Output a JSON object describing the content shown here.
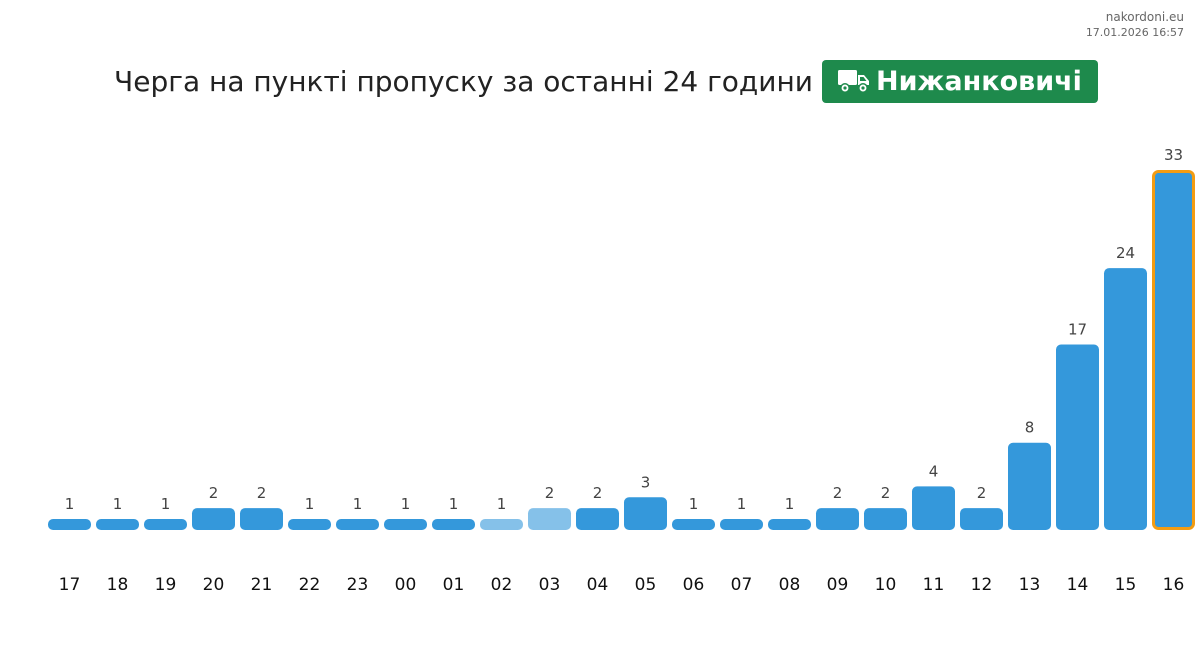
{
  "meta": {
    "site": "nakordoni.eu",
    "timestamp": "17.01.2026 16:57"
  },
  "header": {
    "title": "Черга на пункті пропуску за останні 24 години",
    "checkpoint": "Нижанковичі",
    "checkpoint_icon": "truck-icon",
    "badge_color": "#1e8a4c"
  },
  "chart_data": {
    "type": "bar",
    "title": "Черга на пункті пропуску за останні 24 години",
    "xlabel": "",
    "ylabel": "",
    "categories": [
      "17",
      "18",
      "19",
      "20",
      "21",
      "22",
      "23",
      "00",
      "01",
      "02",
      "03",
      "04",
      "05",
      "06",
      "07",
      "08",
      "09",
      "10",
      "11",
      "12",
      "13",
      "14",
      "15",
      "16"
    ],
    "values": [
      1,
      1,
      1,
      2,
      2,
      1,
      1,
      1,
      1,
      1,
      2,
      2,
      3,
      1,
      1,
      1,
      2,
      2,
      4,
      2,
      8,
      17,
      24,
      33
    ],
    "ylim": [
      0,
      33
    ],
    "grid": false,
    "legend": "none",
    "colors": {
      "bar": "#3498db",
      "bar_faded": "#85c1e9",
      "highlight_outline": "#f39c12"
    },
    "faded_categories": [
      "02",
      "03"
    ],
    "highlighted_category": "16"
  }
}
